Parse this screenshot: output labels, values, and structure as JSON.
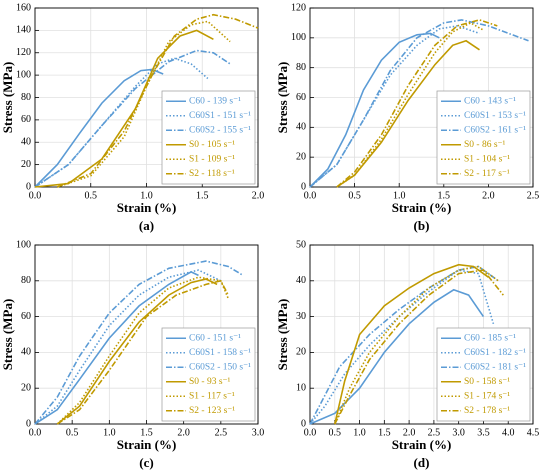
{
  "chart_data": [
    {
      "type": "line",
      "panel_label": "(a)",
      "xlabel": "Strain (%)",
      "ylabel": "Stress (MPa)",
      "grid": true,
      "legend": "lower right",
      "xlim": [
        0,
        2
      ],
      "xticks": [
        {
          "value": 0,
          "label": "0.0"
        },
        0.5,
        {
          "value": 1,
          "label": "1.0"
        },
        1.5,
        {
          "value": 2,
          "label": "2.0"
        }
      ],
      "ylim": [
        0,
        160
      ],
      "yticks": [
        0,
        20,
        40,
        60,
        80,
        100,
        120,
        140,
        160
      ],
      "series": [
        {
          "name": "C60 - 139 s⁻¹",
          "color": "#5b9bd5",
          "dash": "solid",
          "x": [
            0,
            0.2,
            0.4,
            0.6,
            0.8,
            0.95,
            1.05,
            1.15
          ],
          "values": [
            0,
            20,
            48,
            75,
            95,
            104,
            105,
            101
          ]
        },
        {
          "name": "C60S1 - 151 s⁻¹",
          "color": "#5b9bd5",
          "dash": "dotted",
          "x": [
            0,
            0.3,
            0.6,
            0.9,
            1.1,
            1.25,
            1.4,
            1.55
          ],
          "values": [
            0,
            20,
            55,
            90,
            110,
            115,
            110,
            97
          ]
        },
        {
          "name": "C60S2 - 155 s⁻¹",
          "color": "#5b9bd5",
          "dash": "dashdot",
          "x": [
            0,
            0.3,
            0.6,
            0.9,
            1.2,
            1.45,
            1.6,
            1.75
          ],
          "values": [
            0,
            20,
            55,
            88,
            112,
            122,
            120,
            110
          ]
        },
        {
          "name": "S0 - 105 s⁻¹",
          "color": "#c09a00",
          "dash": "solid",
          "x": [
            0,
            0.3,
            0.6,
            0.9,
            1.1,
            1.3,
            1.45,
            1.6
          ],
          "values": [
            0,
            3,
            25,
            70,
            115,
            135,
            140,
            132
          ]
        },
        {
          "name": "S1 - 109 s⁻¹",
          "color": "#c09a00",
          "dash": "dotted",
          "x": [
            0.2,
            0.5,
            0.8,
            1.0,
            1.2,
            1.4,
            1.55,
            1.75
          ],
          "values": [
            0,
            10,
            45,
            90,
            130,
            145,
            148,
            130
          ]
        },
        {
          "name": "S2 - 118 s⁻¹",
          "color": "#c09a00",
          "dash": "dashdot",
          "x": [
            0.2,
            0.5,
            0.8,
            1.05,
            1.25,
            1.45,
            1.6,
            1.8,
            2.0
          ],
          "values": [
            0,
            12,
            50,
            100,
            135,
            150,
            154,
            150,
            142
          ]
        }
      ]
    },
    {
      "type": "line",
      "panel_label": "(b)",
      "xlabel": "Strain (%)",
      "ylabel": "Stress (MPa)",
      "grid": true,
      "legend": "lower right",
      "xlim": [
        0,
        2.5
      ],
      "xticks": [
        {
          "value": 0,
          "label": "0.0"
        },
        0.5,
        {
          "value": 1,
          "label": "1.0"
        },
        1.5,
        {
          "value": 2,
          "label": "2.0"
        },
        2.5
      ],
      "ylim": [
        0,
        120
      ],
      "yticks": [
        0,
        20,
        40,
        60,
        80,
        100,
        120
      ],
      "series": [
        {
          "name": "C60 - 143 s⁻¹",
          "color": "#5b9bd5",
          "dash": "solid",
          "x": [
            0,
            0.2,
            0.4,
            0.6,
            0.8,
            1.0,
            1.2,
            1.35,
            1.45
          ],
          "values": [
            0,
            12,
            35,
            65,
            85,
            97,
            102,
            103,
            100
          ]
        },
        {
          "name": "C60S1 - 153 s⁻¹",
          "color": "#5b9bd5",
          "dash": "dotted",
          "x": [
            0,
            0.3,
            0.6,
            0.9,
            1.2,
            1.45,
            1.65,
            1.9
          ],
          "values": [
            0,
            15,
            45,
            75,
            95,
            106,
            108,
            103
          ]
        },
        {
          "name": "C60S2 - 161 s⁻¹",
          "color": "#5b9bd5",
          "dash": "dashdot",
          "x": [
            0,
            0.3,
            0.6,
            0.9,
            1.2,
            1.5,
            1.7,
            2.0,
            2.45
          ],
          "values": [
            0,
            15,
            45,
            78,
            100,
            110,
            112,
            108,
            98
          ]
        },
        {
          "name": "S0 - 86 s⁻¹",
          "color": "#c09a00",
          "dash": "solid",
          "x": [
            0.3,
            0.5,
            0.8,
            1.1,
            1.4,
            1.6,
            1.75,
            1.9
          ],
          "values": [
            0,
            8,
            30,
            58,
            82,
            95,
            98,
            92
          ]
        },
        {
          "name": "S1 - 104 s⁻¹",
          "color": "#c09a00",
          "dash": "dotted",
          "x": [
            0.3,
            0.5,
            0.8,
            1.1,
            1.4,
            1.6,
            1.8,
            1.95
          ],
          "values": [
            0,
            8,
            32,
            62,
            90,
            104,
            110,
            105
          ]
        },
        {
          "name": "S2 - 117 s⁻¹",
          "color": "#c09a00",
          "dash": "dashdot",
          "x": [
            0.3,
            0.5,
            0.8,
            1.1,
            1.4,
            1.65,
            1.9,
            2.1
          ],
          "values": [
            0,
            10,
            35,
            68,
            95,
            108,
            112,
            108
          ]
        }
      ]
    },
    {
      "type": "line",
      "panel_label": "(c)",
      "xlabel": "Strain (%)",
      "ylabel": "Stress (MPa)",
      "grid": true,
      "legend": "lower right",
      "xlim": [
        0,
        3
      ],
      "xticks": [
        {
          "value": 0,
          "label": "0.0"
        },
        0.5,
        {
          "value": 1,
          "label": "1.0"
        },
        1.5,
        {
          "value": 2,
          "label": "2.0"
        },
        2.5,
        {
          "value": 3,
          "label": "3.0"
        }
      ],
      "ylim": [
        0,
        100
      ],
      "yticks": [
        0,
        20,
        40,
        60,
        80,
        100
      ],
      "series": [
        {
          "name": "C60 - 151 s⁻¹",
          "color": "#5b9bd5",
          "dash": "solid",
          "x": [
            0,
            0.3,
            0.6,
            1.0,
            1.4,
            1.8,
            2.1,
            2.2
          ],
          "values": [
            0,
            8,
            25,
            48,
            66,
            78,
            85,
            83
          ]
        },
        {
          "name": "C60S1 - 158 s⁻¹",
          "color": "#5b9bd5",
          "dash": "dotted",
          "x": [
            0,
            0.3,
            0.6,
            1.0,
            1.4,
            1.8,
            2.2,
            2.5
          ],
          "values": [
            0,
            10,
            30,
            55,
            72,
            82,
            86,
            80
          ]
        },
        {
          "name": "C60S2 - 150 s⁻¹",
          "color": "#5b9bd5",
          "dash": "dashdot",
          "x": [
            0,
            0.3,
            0.6,
            1.0,
            1.4,
            1.8,
            2.3,
            2.6,
            2.8
          ],
          "values": [
            0,
            15,
            38,
            62,
            78,
            87,
            91,
            88,
            83
          ]
        },
        {
          "name": "S0 - 93 s⁻¹",
          "color": "#c09a00",
          "dash": "solid",
          "x": [
            0.3,
            0.6,
            1.0,
            1.4,
            1.8,
            2.1,
            2.3,
            2.45
          ],
          "values": [
            0,
            10,
            35,
            57,
            72,
            79,
            81,
            78
          ]
        },
        {
          "name": "S1 - 117 s⁻¹",
          "color": "#c09a00",
          "dash": "dotted",
          "x": [
            0.3,
            0.6,
            1.0,
            1.4,
            1.8,
            2.2,
            2.5,
            2.6
          ],
          "values": [
            0,
            12,
            38,
            62,
            76,
            82,
            80,
            70
          ]
        },
        {
          "name": "S2 - 123 s⁻¹",
          "color": "#c09a00",
          "dash": "dashdot",
          "x": [
            0.3,
            0.6,
            1.0,
            1.5,
            1.9,
            2.3,
            2.5,
            2.6
          ],
          "values": [
            0,
            8,
            30,
            60,
            72,
            78,
            80,
            72
          ]
        }
      ]
    },
    {
      "type": "line",
      "panel_label": "(d)",
      "xlabel": "Strain (%)",
      "ylabel": "Stress (MPa)",
      "grid": true,
      "legend": "lower right",
      "xlim": [
        0,
        4.5
      ],
      "xticks": [
        {
          "value": 0,
          "label": "0.0"
        },
        0.5,
        {
          "value": 1,
          "label": "1.0"
        },
        1.5,
        {
          "value": 2,
          "label": "2.0"
        },
        2.5,
        {
          "value": 3,
          "label": "3.0"
        },
        3.5,
        {
          "value": 4,
          "label": "4.0"
        },
        4.5
      ],
      "ylim": [
        0,
        50
      ],
      "yticks": [
        0,
        10,
        20,
        30,
        40,
        50
      ],
      "series": [
        {
          "name": "C60 - 185 s⁻¹",
          "color": "#5b9bd5",
          "dash": "solid",
          "x": [
            0,
            0.5,
            1.0,
            1.5,
            2.0,
            2.5,
            2.9,
            3.2,
            3.5
          ],
          "values": [
            0,
            3,
            10,
            20,
            28,
            34,
            37.5,
            36,
            30
          ]
        },
        {
          "name": "C60S1 - 182 s⁻¹",
          "color": "#5b9bd5",
          "dash": "dotted",
          "x": [
            0,
            0.3,
            0.7,
            1.2,
            1.8,
            2.4,
            3.0,
            3.4,
            3.7
          ],
          "values": [
            0,
            5,
            14,
            22,
            30,
            37,
            43,
            42,
            28
          ]
        },
        {
          "name": "C60S2 - 181 s⁻¹",
          "color": "#5b9bd5",
          "dash": "dashdot",
          "x": [
            0,
            0.3,
            0.6,
            1.2,
            1.8,
            2.4,
            3.0,
            3.4,
            3.8
          ],
          "values": [
            0,
            8,
            16,
            25,
            32,
            38,
            43,
            44,
            40
          ]
        },
        {
          "name": "S0 - 158 s⁻¹",
          "color": "#c09a00",
          "dash": "solid",
          "x": [
            0.5,
            0.7,
            1.0,
            1.5,
            2.0,
            2.5,
            3.0,
            3.3,
            3.6
          ],
          "values": [
            0,
            12,
            25,
            33,
            38,
            42,
            44.5,
            44,
            41
          ]
        },
        {
          "name": "S1 - 174 s⁻¹",
          "color": "#c09a00",
          "dash": "dotted",
          "x": [
            0.5,
            0.8,
            1.2,
            1.8,
            2.4,
            3.0,
            3.4,
            3.8
          ],
          "values": [
            0,
            10,
            20,
            30,
            38,
            43,
            44,
            40
          ]
        },
        {
          "name": "S2 - 178 s⁻¹",
          "color": "#c09a00",
          "dash": "dashdot",
          "x": [
            0.5,
            0.8,
            1.2,
            1.8,
            2.4,
            3.0,
            3.5,
            3.9
          ],
          "values": [
            0,
            8,
            18,
            28,
            36,
            42,
            43,
            36
          ]
        }
      ]
    }
  ]
}
